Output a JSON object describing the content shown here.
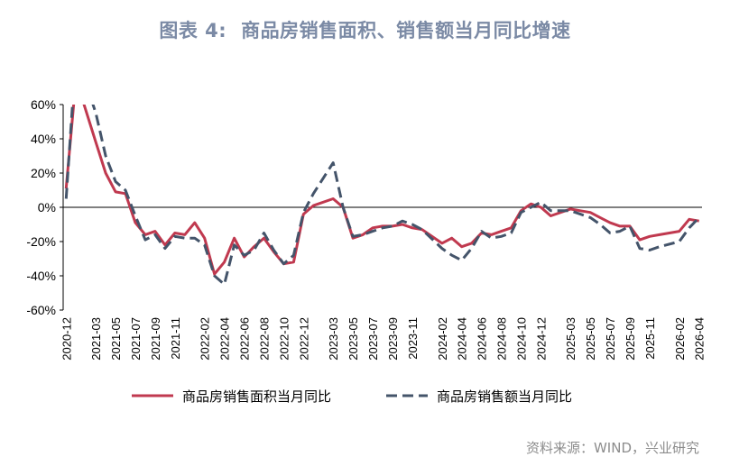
{
  "header": {
    "figure_label": "图表 4:",
    "title": "商品房销售面积、销售额当月同比增速"
  },
  "source_note": "资料来源：WIND，兴业研究",
  "colors": {
    "area_series": "#c0394f",
    "sales_series": "#44546a",
    "axis": "#000000"
  },
  "chart_data": {
    "type": "line",
    "title": "商品房销售面积、销售额当月同比增速",
    "ylim": [
      -60,
      60
    ],
    "yticks": [
      -60,
      -40,
      -20,
      0,
      20,
      40,
      60
    ],
    "ytick_labels": [
      "-60%",
      "-40%",
      "-20%",
      "0%",
      "20%",
      "40%",
      "60%"
    ],
    "xtick_labels": [
      "2020-12",
      "2021-03",
      "2021-05",
      "2021-07",
      "2021-09",
      "2021-11",
      "2022-02",
      "2022-04",
      "2022-06",
      "2022-08",
      "2022-10",
      "2022-12",
      "2023-03",
      "2023-05",
      "2023-07",
      "2023-09",
      "2023-11",
      "2024-02",
      "2024-04",
      "2024-06",
      "2024-08",
      "2024-10",
      "2024-12",
      "2025-03",
      "2025-05",
      "2025-07",
      "2025-09",
      "2025-11",
      "2026-02",
      "2026-04"
    ],
    "grid": false,
    "legend_position": "bottom",
    "x": [
      "2020-12",
      "2021-01",
      "2021-03",
      "2021-04",
      "2021-05",
      "2021-06",
      "2021-07",
      "2021-08",
      "2021-09",
      "2021-10",
      "2021-11",
      "2021-12",
      "2022-01",
      "2022-02",
      "2022-03",
      "2022-04",
      "2022-05",
      "2022-06",
      "2022-07",
      "2022-08",
      "2022-09",
      "2022-10",
      "2022-11",
      "2022-12",
      "2023-01",
      "2023-03",
      "2023-04",
      "2023-05",
      "2023-06",
      "2023-07",
      "2023-08",
      "2023-09",
      "2023-10",
      "2023-11",
      "2023-12",
      "2024-02",
      "2024-03",
      "2024-04",
      "2024-05",
      "2024-06",
      "2024-07",
      "2024-08",
      "2024-09",
      "2024-10",
      "2024-11",
      "2024-12",
      "2025-01",
      "2025-03",
      "2025-04",
      "2025-05",
      "2025-06",
      "2025-07",
      "2025-08",
      "2025-09",
      "2025-10",
      "2025-11",
      "2025-12",
      "2026-02",
      "2026-03",
      "2026-04"
    ],
    "series": [
      {
        "name": "商品房销售面积当月同比",
        "color": "#c0394f",
        "style": "solid",
        "values": [
          11,
          75,
          38,
          20,
          9,
          8,
          -9,
          -16,
          -14,
          -22,
          -15,
          -16,
          -9,
          -18,
          -39,
          -32,
          -18,
          -29,
          -23,
          -18,
          -26,
          -33,
          -32,
          -4,
          1,
          5,
          0,
          -18,
          -16,
          -12,
          -11,
          -11,
          -10,
          -12,
          -13,
          -21,
          -18,
          -23,
          -21,
          -15,
          -16,
          -14,
          -12,
          -2,
          2,
          0,
          -5,
          -1,
          -2,
          -3,
          -6,
          -9,
          -11,
          -11,
          -19,
          -17,
          -16,
          -14,
          -7,
          -8
        ]
      },
      {
        "name": "商品房销售额当月同比",
        "color": "#44546a",
        "style": "dashed",
        "values": [
          5,
          90,
          55,
          30,
          15,
          10,
          -5,
          -19,
          -16,
          -24,
          -17,
          -18,
          -18,
          -22,
          -40,
          -45,
          -22,
          -28,
          -25,
          -15,
          -25,
          -33,
          -28,
          -3,
          8,
          26,
          0,
          -17,
          -16,
          -14,
          -12,
          -11,
          -8,
          -10,
          -13,
          -24,
          -28,
          -31,
          -24,
          -14,
          -18,
          -17,
          -15,
          -3,
          0,
          3,
          -2,
          -2,
          -4,
          -6,
          -10,
          -15,
          -14,
          -11,
          -24,
          -25,
          -23,
          -20,
          -12,
          -6
        ]
      }
    ]
  }
}
